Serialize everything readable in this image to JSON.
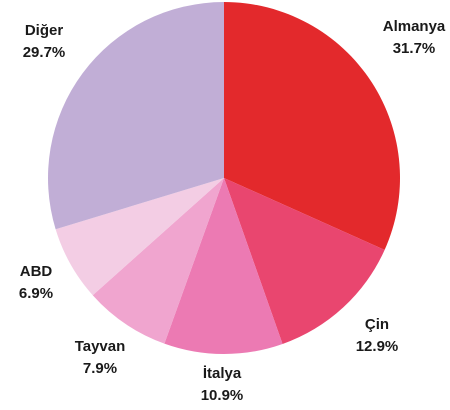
{
  "chart_data": {
    "type": "pie",
    "categories": [
      "Almanya",
      "Çin",
      "İtalya",
      "Tayvan",
      "ABD",
      "Diğer"
    ],
    "values": [
      31.7,
      12.9,
      10.9,
      7.9,
      6.9,
      29.7
    ],
    "value_labels": [
      "31.7%",
      "12.9%",
      "10.9%",
      "7.9%",
      "6.9%",
      "29.7%"
    ],
    "colors": [
      "#e3292c",
      "#e9466f",
      "#ec7ab3",
      "#f0a5cf",
      "#f3cde4",
      "#c1aed6"
    ]
  }
}
